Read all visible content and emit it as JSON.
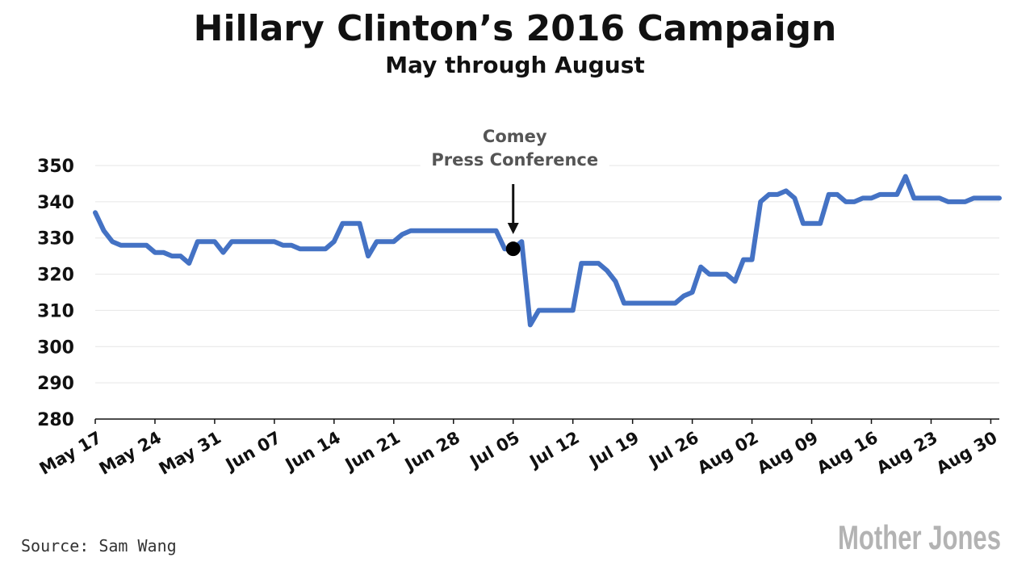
{
  "header": {
    "title": "Hillary Clinton’s 2016 Campaign",
    "subtitle": "May through August"
  },
  "footer": {
    "source": "Source: Sam Wang",
    "logo_text": "Mother Jones"
  },
  "colors": {
    "line": "#4472c4",
    "grid": "#e6e6e6",
    "axis": "#111111",
    "logo": "#b3b3b3"
  },
  "chart_data": {
    "type": "line",
    "title": "Hillary Clinton’s 2016 Campaign",
    "subtitle": "May through August",
    "xlabel": "",
    "ylabel": "",
    "ylim": [
      280,
      350
    ],
    "yticks": [
      280,
      290,
      300,
      310,
      320,
      330,
      340,
      350
    ],
    "xlim": [
      "2016-05-17",
      "2016-08-31"
    ],
    "xticks": [
      {
        "date": "2016-05-17",
        "label": "May 17"
      },
      {
        "date": "2016-05-24",
        "label": "May 24"
      },
      {
        "date": "2016-05-31",
        "label": "May 31"
      },
      {
        "date": "2016-06-07",
        "label": "Jun 07"
      },
      {
        "date": "2016-06-14",
        "label": "Jun 14"
      },
      {
        "date": "2016-06-21",
        "label": "Jun 21"
      },
      {
        "date": "2016-06-28",
        "label": "Jun 28"
      },
      {
        "date": "2016-07-05",
        "label": "Jul 05"
      },
      {
        "date": "2016-07-12",
        "label": "Jul 12"
      },
      {
        "date": "2016-07-19",
        "label": "Jul 19"
      },
      {
        "date": "2016-07-26",
        "label": "Jul 26"
      },
      {
        "date": "2016-08-02",
        "label": "Aug 02"
      },
      {
        "date": "2016-08-09",
        "label": "Aug 09"
      },
      {
        "date": "2016-08-16",
        "label": "Aug 16"
      },
      {
        "date": "2016-08-23",
        "label": "Aug 23"
      },
      {
        "date": "2016-08-30",
        "label": "Aug 30"
      }
    ],
    "grid": true,
    "legend": "none",
    "series": [
      {
        "x": [
          "2016-05-17",
          "2016-05-18",
          "2016-05-19",
          "2016-05-20",
          "2016-05-21",
          "2016-05-22",
          "2016-05-23",
          "2016-05-24",
          "2016-05-25",
          "2016-05-26",
          "2016-05-27",
          "2016-05-28",
          "2016-05-29",
          "2016-05-30",
          "2016-05-31",
          "2016-06-01",
          "2016-06-02",
          "2016-06-03",
          "2016-06-04",
          "2016-06-05",
          "2016-06-06",
          "2016-06-07",
          "2016-06-08",
          "2016-06-09",
          "2016-06-10",
          "2016-06-11",
          "2016-06-12",
          "2016-06-13",
          "2016-06-14",
          "2016-06-15",
          "2016-06-16",
          "2016-06-17",
          "2016-06-18",
          "2016-06-19",
          "2016-06-20",
          "2016-06-21",
          "2016-06-22",
          "2016-06-23",
          "2016-06-24",
          "2016-06-25",
          "2016-06-26",
          "2016-06-27",
          "2016-06-28",
          "2016-06-29",
          "2016-06-30",
          "2016-07-01",
          "2016-07-02",
          "2016-07-03",
          "2016-07-04",
          "2016-07-05",
          "2016-07-06",
          "2016-07-07",
          "2016-07-08",
          "2016-07-09",
          "2016-07-10",
          "2016-07-11",
          "2016-07-12",
          "2016-07-13",
          "2016-07-14",
          "2016-07-15",
          "2016-07-16",
          "2016-07-17",
          "2016-07-18",
          "2016-07-19",
          "2016-07-20",
          "2016-07-21",
          "2016-07-22",
          "2016-07-23",
          "2016-07-24",
          "2016-07-25",
          "2016-07-26",
          "2016-07-27",
          "2016-07-28",
          "2016-07-29",
          "2016-07-30",
          "2016-07-31",
          "2016-08-01",
          "2016-08-02",
          "2016-08-03",
          "2016-08-04",
          "2016-08-05",
          "2016-08-06",
          "2016-08-07",
          "2016-08-08",
          "2016-08-09",
          "2016-08-10",
          "2016-08-11",
          "2016-08-12",
          "2016-08-13",
          "2016-08-14",
          "2016-08-15",
          "2016-08-16",
          "2016-08-17",
          "2016-08-18",
          "2016-08-19",
          "2016-08-20",
          "2016-08-21",
          "2016-08-22",
          "2016-08-23",
          "2016-08-24",
          "2016-08-25",
          "2016-08-26",
          "2016-08-27",
          "2016-08-28",
          "2016-08-29",
          "2016-08-30",
          "2016-08-31"
        ],
        "values": [
          337,
          332,
          329,
          328,
          328,
          328,
          328,
          326,
          326,
          325,
          325,
          323,
          329,
          329,
          329,
          326,
          329,
          329,
          329,
          329,
          329,
          329,
          328,
          328,
          327,
          327,
          327,
          327,
          329,
          334,
          334,
          334,
          325,
          329,
          329,
          329,
          331,
          332,
          332,
          332,
          332,
          332,
          332,
          332,
          332,
          332,
          332,
          332,
          327,
          327,
          329,
          306,
          310,
          310,
          310,
          310,
          310,
          323,
          323,
          323,
          321,
          318,
          312,
          312,
          312,
          312,
          312,
          312,
          312,
          314,
          315,
          322,
          320,
          320,
          320,
          318,
          324,
          324,
          340,
          342,
          342,
          343,
          341,
          334,
          334,
          334,
          342,
          342,
          340,
          340,
          341,
          341,
          342,
          342,
          342,
          347,
          341,
          341,
          341,
          341,
          340,
          340,
          340,
          341,
          341,
          341,
          341
        ]
      }
    ],
    "annotations": [
      {
        "lines": [
          "Comey",
          "Press Conference"
        ],
        "x": "2016-07-05",
        "y": 327
      }
    ]
  }
}
